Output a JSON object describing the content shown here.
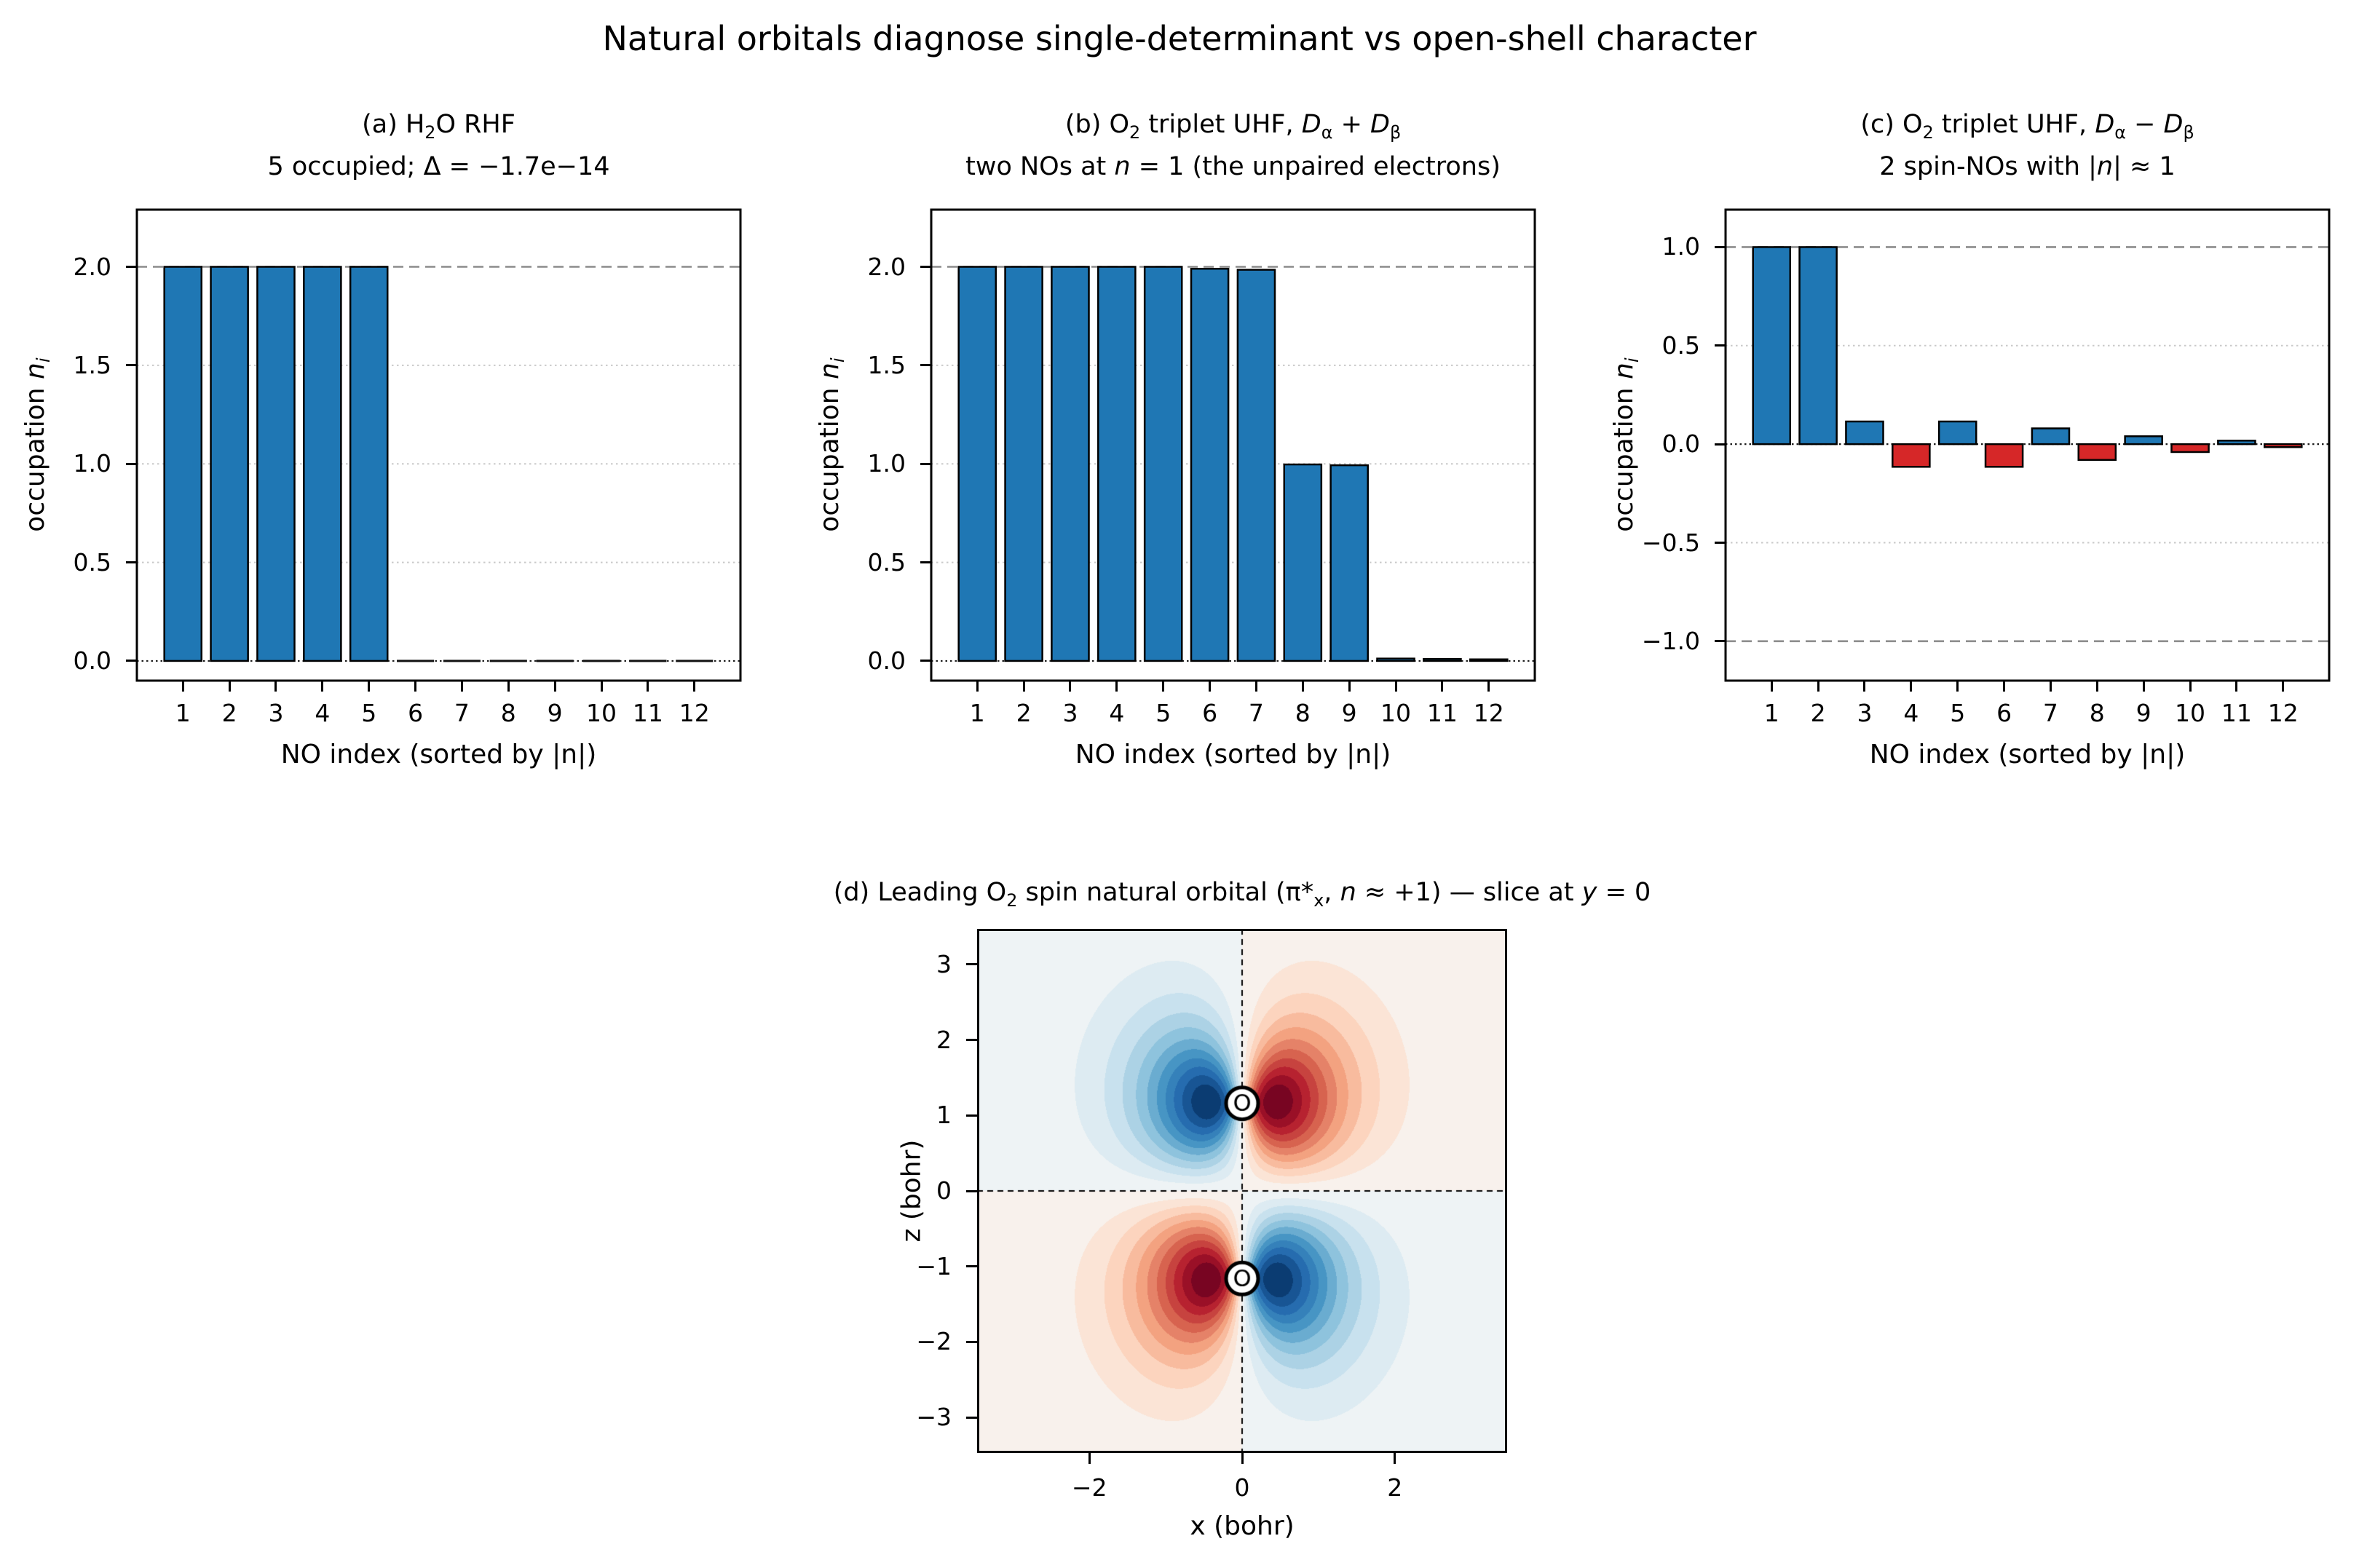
{
  "suptitle": "Natural orbitals diagnose single-determinant vs open-shell character",
  "colors": {
    "bar_blue": "#1f77b4",
    "bar_red": "#d62728",
    "bar_edge": "#000000",
    "ref_dashed": "#8c8c8c",
    "grid_dotted": "#c9c9c9",
    "zero_dotted": "#1c1c1c",
    "frame": "#000000"
  },
  "chart_data": [
    {
      "id": "a",
      "type": "bar",
      "title_lines_html": [
        "(a) H<sub>2</sub>O RHF",
        "5 occupied; Δ = −1.7e−14"
      ],
      "xlabel": "NO index (sorted by |n|)",
      "ylabel_html": "occupation <i>n<sub>i</sub></i>",
      "categories": [
        1,
        2,
        3,
        4,
        5,
        6,
        7,
        8,
        9,
        10,
        11,
        12
      ],
      "values": [
        2.0,
        2.0,
        2.0,
        2.0,
        2.0,
        0.0,
        0.0,
        0.0,
        0.0,
        0.0,
        0.0,
        0.0
      ],
      "bar_color_rule": "all_blue",
      "ylim": [
        -0.1,
        2.29
      ],
      "yticks": [
        {
          "v": 0.0,
          "label": "0.0"
        },
        {
          "v": 0.5,
          "label": "0.5"
        },
        {
          "v": 1.0,
          "label": "1.0"
        },
        {
          "v": 1.5,
          "label": "1.5"
        },
        {
          "v": 2.0,
          "label": "2.0"
        }
      ],
      "ref_lines": [
        {
          "y": 2.0,
          "style": "dashed"
        },
        {
          "y": 0.0,
          "style": "zero"
        }
      ],
      "grid_lines": [
        0.5,
        1.0,
        1.5
      ],
      "bar_width": 0.8,
      "xlim": [
        0.01,
        12.99
      ]
    },
    {
      "id": "b",
      "type": "bar",
      "title_lines_html": [
        "(b) O<sub>2</sub> triplet UHF, <i>D</i><sub>α</sub> + <i>D</i><sub>β</sub>",
        "two NOs at <i>n</i> = 1 (the unpaired electrons)"
      ],
      "xlabel": "NO index (sorted by |n|)",
      "ylabel_html": "occupation <i>n<sub>i</sub></i>",
      "categories": [
        1,
        2,
        3,
        4,
        5,
        6,
        7,
        8,
        9,
        10,
        11,
        12
      ],
      "values": [
        2.0,
        2.0,
        2.0,
        2.0,
        2.0,
        1.99,
        1.985,
        0.997,
        0.993,
        0.012,
        0.01,
        0.008
      ],
      "bar_color_rule": "all_blue",
      "ylim": [
        -0.1,
        2.29
      ],
      "yticks": [
        {
          "v": 0.0,
          "label": "0.0"
        },
        {
          "v": 0.5,
          "label": "0.5"
        },
        {
          "v": 1.0,
          "label": "1.0"
        },
        {
          "v": 1.5,
          "label": "1.5"
        },
        {
          "v": 2.0,
          "label": "2.0"
        }
      ],
      "ref_lines": [
        {
          "y": 2.0,
          "style": "dashed"
        },
        {
          "y": 0.0,
          "style": "zero"
        }
      ],
      "grid_lines": [
        0.5,
        1.0,
        1.5
      ],
      "bar_width": 0.8,
      "xlim": [
        0.01,
        12.99
      ]
    },
    {
      "id": "c",
      "type": "bar",
      "title_lines_html": [
        "(c) O<sub>2</sub> triplet UHF, <i>D</i><sub>α</sub> − <i>D</i><sub>β</sub>",
        "2 spin-NOs with |<i>n</i>| ≈ 1"
      ],
      "xlabel": "NO index (sorted by |n|)",
      "ylabel_html": "occupation <i>n<sub>i</sub></i>",
      "categories": [
        1,
        2,
        3,
        4,
        5,
        6,
        7,
        8,
        9,
        10,
        11,
        12
      ],
      "values": [
        1.0,
        1.0,
        0.115,
        -0.115,
        0.115,
        -0.115,
        0.08,
        -0.08,
        0.04,
        -0.04,
        0.018,
        -0.015
      ],
      "bar_color_rule": "pos_blue_neg_red",
      "ylim": [
        -1.2,
        1.19
      ],
      "yticks": [
        {
          "v": 1.0,
          "label": "1.0"
        },
        {
          "v": 0.5,
          "label": "0.5"
        },
        {
          "v": 0.0,
          "label": "0.0"
        },
        {
          "v": -0.5,
          "label": "−0.5"
        },
        {
          "v": -1.0,
          "label": "−1.0"
        }
      ],
      "ref_lines": [
        {
          "y": 1.0,
          "style": "dashed"
        },
        {
          "y": -1.0,
          "style": "dashed"
        },
        {
          "y": 0.0,
          "style": "zero"
        }
      ],
      "grid_lines": [
        0.5,
        -0.5
      ],
      "bar_width": 0.8,
      "xlim": [
        0.01,
        12.99
      ]
    },
    {
      "id": "d",
      "type": "contour",
      "title_html": "(d) Leading O<sub>2</sub> spin natural orbital (π*<sub>x</sub>, <i>n</i> ≈ +1) — slice at <i>y</i> = 0",
      "xlabel": "x (bohr)",
      "ylabel": "z (bohr)",
      "xlim": [
        -3.47,
        3.47
      ],
      "zlim": [
        -3.47,
        3.47
      ],
      "xticks": [
        {
          "v": -2,
          "label": "−2"
        },
        {
          "v": 0,
          "label": "0"
        },
        {
          "v": 2,
          "label": "2"
        }
      ],
      "zticks": [
        {
          "v": 3,
          "label": "3"
        },
        {
          "v": 2,
          "label": "2"
        },
        {
          "v": 1,
          "label": "1"
        },
        {
          "v": 0,
          "label": "0"
        },
        {
          "v": -1,
          "label": "−1"
        },
        {
          "v": -2,
          "label": "−2"
        },
        {
          "v": -3,
          "label": "−3"
        }
      ],
      "atoms": [
        {
          "symbol": "O",
          "x": 0,
          "z": 1.16
        },
        {
          "symbol": "O",
          "x": 0,
          "z": -1.16
        }
      ],
      "orbital": {
        "form": "pi_star_x",
        "zeta": 1.9,
        "x_anisotropy": 1.35,
        "z0": 1.16,
        "levels": 22
      },
      "crosshair": {
        "x": 0,
        "z": 0
      },
      "colormap_rdbu_r": [
        "#053061",
        "#2166ac",
        "#4393c3",
        "#92c5de",
        "#d1e5f0",
        "#f7f7f7",
        "#fddbc7",
        "#f4a582",
        "#d6604d",
        "#b2182b",
        "#67001f"
      ]
    }
  ]
}
